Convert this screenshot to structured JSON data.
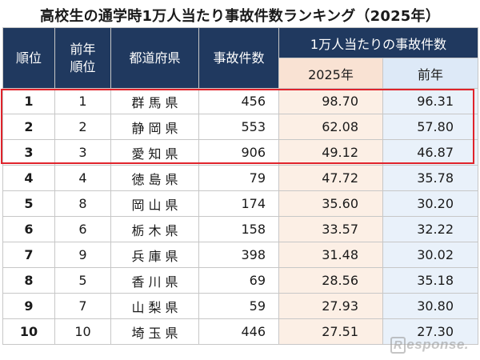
{
  "title": "高校生の通学時1万人当たり事故件数ランキング（2025年）",
  "headers": {
    "rank": "順位",
    "prev_rank_line1": "前年",
    "prev_rank_line2": "順位",
    "prefecture": "都道府県",
    "accidents": "事故件数",
    "per10k_group": "1万人当たりの事故件数",
    "year_2025": "2025年",
    "prev_year": "前年"
  },
  "rows": [
    {
      "rank": "1",
      "prev_rank": "1",
      "prefecture": "群馬県",
      "accidents": "456",
      "rate_2025": "98.70",
      "rate_prev": "96.31"
    },
    {
      "rank": "2",
      "prev_rank": "2",
      "prefecture": "静岡県",
      "accidents": "553",
      "rate_2025": "62.08",
      "rate_prev": "57.80"
    },
    {
      "rank": "3",
      "prev_rank": "3",
      "prefecture": "愛知県",
      "accidents": "906",
      "rate_2025": "49.12",
      "rate_prev": "46.87"
    },
    {
      "rank": "4",
      "prev_rank": "4",
      "prefecture": "徳島県",
      "accidents": "79",
      "rate_2025": "47.72",
      "rate_prev": "35.78"
    },
    {
      "rank": "5",
      "prev_rank": "8",
      "prefecture": "岡山県",
      "accidents": "174",
      "rate_2025": "35.60",
      "rate_prev": "30.20"
    },
    {
      "rank": "6",
      "prev_rank": "6",
      "prefecture": "栃木県",
      "accidents": "158",
      "rate_2025": "33.57",
      "rate_prev": "32.22"
    },
    {
      "rank": "7",
      "prev_rank": "9",
      "prefecture": "兵庫県",
      "accidents": "398",
      "rate_2025": "31.48",
      "rate_prev": "30.02"
    },
    {
      "rank": "8",
      "prev_rank": "5",
      "prefecture": "香川県",
      "accidents": "69",
      "rate_2025": "28.56",
      "rate_prev": "35.18"
    },
    {
      "rank": "9",
      "prev_rank": "7",
      "prefecture": "山梨県",
      "accidents": "59",
      "rate_2025": "27.93",
      "rate_prev": "30.80"
    },
    {
      "rank": "10",
      "prev_rank": "10",
      "prefecture": "埼玉県",
      "accidents": "446",
      "rate_2025": "27.51",
      "rate_prev": "27.30"
    }
  ],
  "colors": {
    "header_bg": "#20395f",
    "col_2025_bg": "#fcefe5",
    "col_prev_bg": "#e9f1fa",
    "highlight_border": "#e0232b"
  },
  "watermark": "Response."
}
